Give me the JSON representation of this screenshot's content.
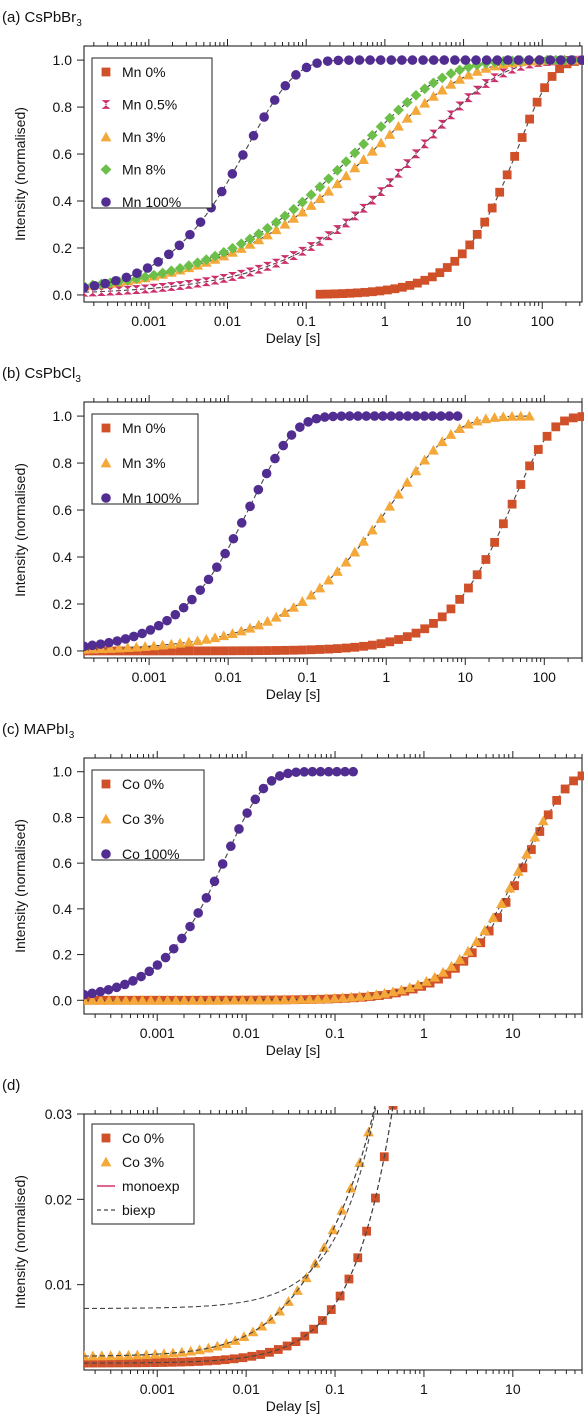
{
  "chart_data": [
    {
      "type": "scatter",
      "panel_label": "(a) CsPbBr",
      "panel_sub": "3",
      "xlabel": "Delay [s]",
      "ylabel": "Intensity (normalised)",
      "xscale": "log",
      "xlim": [
        0.00015,
        320
      ],
      "ylim": [
        -0.03,
        1.06
      ],
      "xticks": [
        {
          "v": 0.001,
          "label": "0.001"
        },
        {
          "v": 0.01,
          "label": "0.01"
        },
        {
          "v": 0.1,
          "label": "0.1"
        },
        {
          "v": 1,
          "label": "1"
        },
        {
          "v": 10,
          "label": "10"
        },
        {
          "v": 100,
          "label": "100"
        }
      ],
      "yticks": [
        {
          "v": 0,
          "label": "0.0"
        },
        {
          "v": 0.2,
          "label": "0.2"
        },
        {
          "v": 0.4,
          "label": "0.4"
        },
        {
          "v": 0.6,
          "label": "0.6"
        },
        {
          "v": 0.8,
          "label": "0.8"
        },
        {
          "v": 1.0,
          "label": "1.0"
        }
      ],
      "legend_position": "top-left",
      "series": [
        {
          "name": "Mn 0%",
          "marker": "square",
          "color": "#d0502a",
          "tau": 50,
          "beta": 1.0,
          "x_start": 0.15,
          "x_end": 320,
          "n": 36
        },
        {
          "name": "Mn 0.5%",
          "marker": "hourglass",
          "color": "#cc2f6c",
          "tau": 3.0,
          "beta": 0.45,
          "x_start": 0.00015,
          "x_end": 320,
          "n": 58
        },
        {
          "name": "Mn 3%",
          "marker": "triangle",
          "color": "#f5a83a",
          "tau": 0.8,
          "beta": 0.38,
          "x_start": 0.00015,
          "x_end": 320,
          "n": 58
        },
        {
          "name": "Mn 8%",
          "marker": "diamond",
          "color": "#6cc04a",
          "tau": 0.5,
          "beta": 0.4,
          "x_start": 0.00015,
          "x_end": 320,
          "n": 58
        },
        {
          "name": "Mn 100%",
          "marker": "circle",
          "color": "#512c91",
          "tau": 0.018,
          "beta": 0.72,
          "x_start": 0.00015,
          "x_end": 320,
          "n": 48
        }
      ]
    },
    {
      "type": "scatter",
      "panel_label": "(b) CsPbCl",
      "panel_sub": "3",
      "xlabel": "Delay [s]",
      "ylabel": "Intensity (normalised)",
      "xscale": "log",
      "xlim": [
        0.00015,
        300
      ],
      "ylim": [
        -0.03,
        1.06
      ],
      "xticks": [
        {
          "v": 0.001,
          "label": "0.001"
        },
        {
          "v": 0.01,
          "label": "0.01"
        },
        {
          "v": 0.1,
          "label": "0.1"
        },
        {
          "v": 1,
          "label": "1"
        },
        {
          "v": 10,
          "label": "10"
        },
        {
          "v": 100,
          "label": "100"
        }
      ],
      "yticks": [
        {
          "v": 0,
          "label": "0.0"
        },
        {
          "v": 0.2,
          "label": "0.2"
        },
        {
          "v": 0.4,
          "label": "0.4"
        },
        {
          "v": 0.6,
          "label": "0.6"
        },
        {
          "v": 0.8,
          "label": "0.8"
        },
        {
          "v": 1.0,
          "label": "1.0"
        }
      ],
      "legend_position": "top-left",
      "series": [
        {
          "name": "Mn 0%",
          "marker": "square",
          "color": "#d0502a",
          "tau": 40,
          "beta": 0.9,
          "x_start": 0.00015,
          "x_end": 300,
          "n": 58
        },
        {
          "name": "Mn 3%",
          "marker": "triangle",
          "color": "#f5a83a",
          "tau": 1.2,
          "beta": 0.55,
          "x_start": 0.00015,
          "x_end": 65,
          "n": 52
        },
        {
          "name": "Mn 100%",
          "marker": "circle",
          "color": "#512c91",
          "tau": 0.02,
          "beta": 0.8,
          "x_start": 0.00015,
          "x_end": 8,
          "n": 46
        }
      ]
    },
    {
      "type": "scatter",
      "panel_label": "(c) MAPbI",
      "panel_sub": "3",
      "xlabel": "Delay [s]",
      "ylabel": "Intensity (normalised)",
      "xscale": "log",
      "xlim": [
        0.00015,
        60
      ],
      "ylim": [
        -0.06,
        1.06
      ],
      "xticks": [
        {
          "v": 0.001,
          "label": "0.001"
        },
        {
          "v": 0.01,
          "label": "0.01"
        },
        {
          "v": 0.1,
          "label": "0.1"
        },
        {
          "v": 1,
          "label": "1"
        },
        {
          "v": 10,
          "label": "10"
        }
      ],
      "yticks": [
        {
          "v": 0,
          "label": "0.0"
        },
        {
          "v": 0.2,
          "label": "0.2"
        },
        {
          "v": 0.4,
          "label": "0.4"
        },
        {
          "v": 0.6,
          "label": "0.6"
        },
        {
          "v": 0.8,
          "label": "0.8"
        },
        {
          "v": 1.0,
          "label": "1.0"
        }
      ],
      "legend_position": "top-left",
      "series": [
        {
          "name": "Co 0%",
          "marker": "square",
          "color": "#d0502a",
          "tau": 15,
          "beta": 1.0,
          "x_start": 0.00015,
          "x_end": 60,
          "n": 60
        },
        {
          "name": "Co 3%",
          "marker": "triangle",
          "color": "#f5a83a",
          "tau": 14,
          "beta": 0.95,
          "x_start": 0.00015,
          "x_end": 22,
          "n": 56
        },
        {
          "name": "Co 100%",
          "marker": "circle",
          "color": "#512c91",
          "tau": 0.006,
          "beta": 1.0,
          "x_start": 0.00015,
          "x_end": 0.16,
          "n": 34
        }
      ]
    },
    {
      "type": "scatter",
      "panel_label": "(d)",
      "panel_sub": "",
      "xlabel": "Delay [s]",
      "ylabel": "Intensity (normalised)",
      "xscale": "log",
      "xlim": [
        0.00015,
        60
      ],
      "ylim": [
        0.0,
        0.03
      ],
      "xticks": [
        {
          "v": 0.001,
          "label": "0.001"
        },
        {
          "v": 0.01,
          "label": "0.01"
        },
        {
          "v": 0.1,
          "label": "0.1"
        },
        {
          "v": 1,
          "label": "1"
        },
        {
          "v": 10,
          "label": "10"
        }
      ],
      "yticks": [
        {
          "v": 0.01,
          "label": "0.01"
        },
        {
          "v": 0.02,
          "label": "0.02"
        },
        {
          "v": 0.03,
          "label": "0.03"
        }
      ],
      "legend_position": "top-left",
      "series": [
        {
          "name": "Co 0%",
          "marker": "square",
          "color": "#d0502a",
          "base": 0.0008,
          "A": 0.0008,
          "tau1": 0.25,
          "B": 1.0,
          "tau2": 15,
          "x_start": 0.00015,
          "x_end": 0.45,
          "n": 36
        },
        {
          "name": "Co 3%",
          "marker": "triangle",
          "color": "#f5a83a",
          "base": 0.0016,
          "A": 0.0095,
          "tau1": 0.05,
          "B": 1.0,
          "tau2": 14,
          "x_start": 0.00015,
          "x_end": 0.3,
          "n": 34
        },
        {
          "name": "monoexp",
          "marker": "line",
          "color": "#d6336c",
          "base": 0.0072,
          "A": 0.0,
          "tau1": 1.0,
          "B": 1.0,
          "tau2": 12,
          "x_start": 0.00015,
          "x_end": 0.35,
          "n": 0
        },
        {
          "name": "biexp",
          "marker": "dash",
          "color": "#444444",
          "n": 0
        }
      ]
    }
  ]
}
